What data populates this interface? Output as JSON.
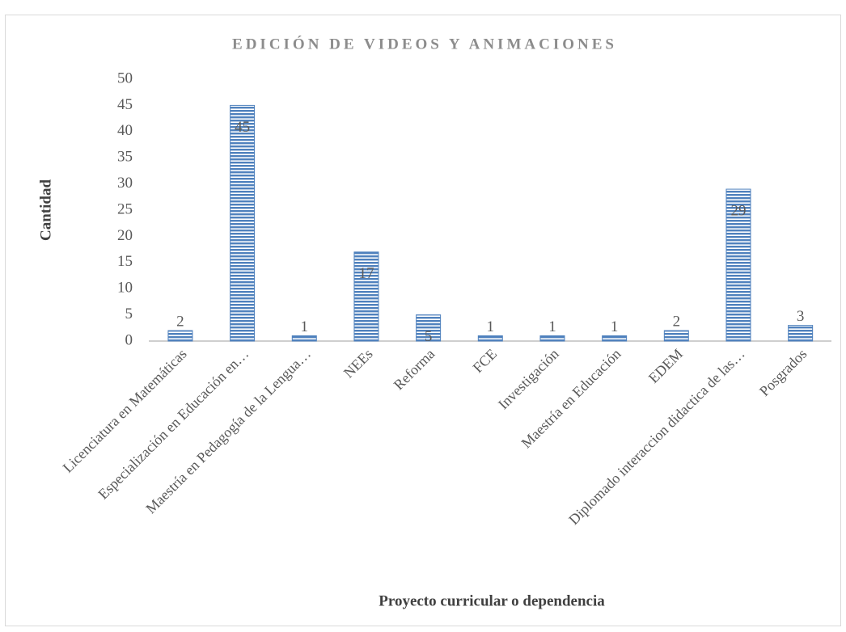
{
  "chart_data": {
    "type": "bar",
    "title": "EDICIÓN DE VIDEOS Y ANIMACIONES",
    "x_label": "Proyecto curricular o dependencia",
    "y_label": "Cantidad",
    "categories": [
      "Licenciatura en Matemáticas",
      "Especialización en Educación en…",
      "Maestría en Pedagogía de la Lengua…",
      "NEEs",
      "Reforma",
      "FCE",
      "Investigación",
      "Maestría en Educación",
      "EDEM",
      "Diplomado interaccion didactica de las…",
      "Posgrados"
    ],
    "values": [
      2,
      45,
      1,
      17,
      5,
      1,
      1,
      1,
      2,
      29,
      3
    ],
    "color": "#4f81bd",
    "ylim": [
      0,
      50
    ],
    "yticks": [
      0,
      5,
      10,
      15,
      20,
      25,
      30,
      35,
      40,
      45,
      50
    ],
    "grid": false
  }
}
